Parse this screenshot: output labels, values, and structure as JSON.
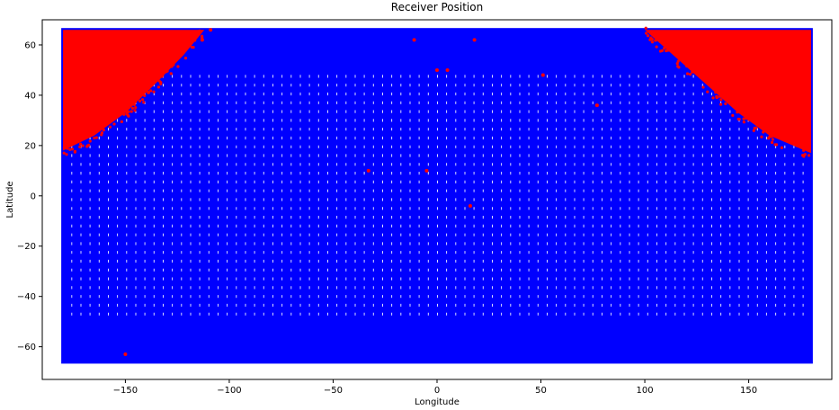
{
  "chart_data": {
    "type": "scatter",
    "title": "Receiver Position",
    "xlabel": "Longitude",
    "ylabel": "Latitude",
    "xlim": [
      -190,
      190
    ],
    "ylim": [
      -73,
      70
    ],
    "xticks": [
      -150,
      -100,
      -50,
      0,
      50,
      100,
      150
    ],
    "yticks": [
      -60,
      -40,
      -20,
      0,
      20,
      40,
      60
    ],
    "grid": false,
    "colors": {
      "blue_series": "#0000ff",
      "red_series": "#ff0000"
    },
    "point_extent": {
      "lon": [
        -180,
        180
      ],
      "lat": [
        -66,
        66
      ]
    },
    "series": [
      {
        "color": "#0000ff",
        "description_region": "dense coverage of the full grid lon -180..180, lat -66..66"
      },
      {
        "color": "#ff0000",
        "regions": [
          {
            "lon": [
              -180,
              -110
            ],
            "lat_top": 66,
            "boundary": [
              [
                -180,
                18
              ],
              [
                -165,
                24
              ],
              [
                -150,
                33
              ],
              [
                -135,
                45
              ],
              [
                -122,
                56
              ],
              [
                -112,
                66
              ]
            ]
          },
          {
            "lon": [
              100,
              180
            ],
            "lat_top": 66,
            "boundary": [
              [
                100,
                66
              ],
              [
                115,
                55
              ],
              [
                130,
                44
              ],
              [
                145,
                33
              ],
              [
                160,
                24
              ],
              [
                180,
                17
              ]
            ]
          }
        ],
        "outliers": [
          [
            -150,
            -63
          ],
          [
            -11,
            62
          ],
          [
            18,
            62
          ],
          [
            0,
            50
          ],
          [
            5,
            50
          ],
          [
            51,
            48
          ],
          [
            77,
            36
          ],
          [
            -33,
            10
          ],
          [
            -5,
            10
          ],
          [
            16,
            -4
          ],
          [
            -113,
            62
          ],
          [
            -109,
            66
          ]
        ]
      }
    ]
  }
}
